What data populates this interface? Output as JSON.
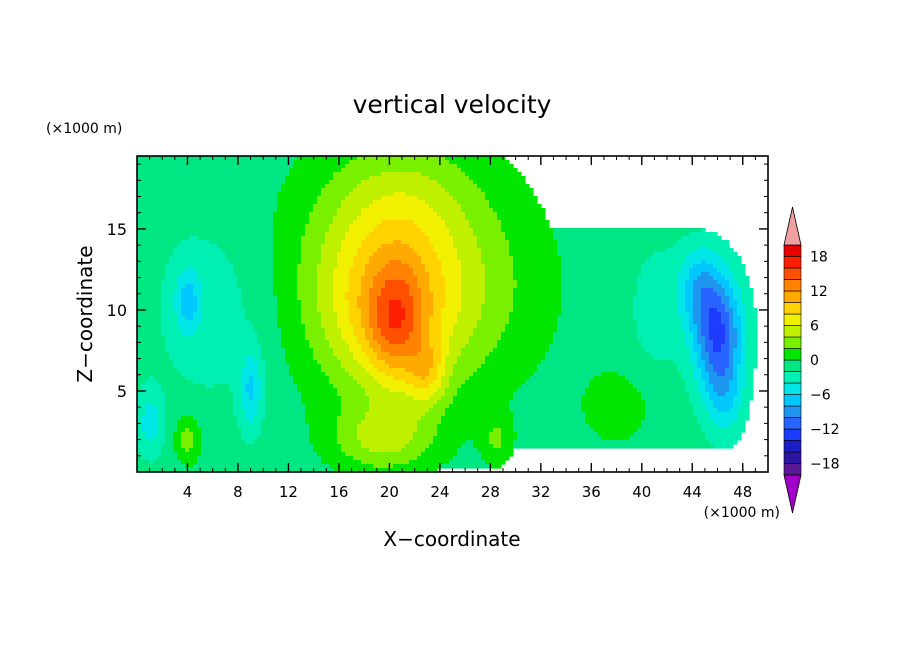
{
  "chart_data": {
    "type": "heatmap",
    "title": "vertical velocity",
    "xlabel": "X−coordinate",
    "ylabel": "Z−coordinate",
    "x_unit": "(×1000 m)",
    "y_unit": "(×1000 m)",
    "xlim": [
      0,
      50
    ],
    "ylim": [
      0,
      19.5
    ],
    "x_ticks": [
      4,
      8,
      12,
      16,
      20,
      24,
      28,
      32,
      36,
      40,
      44,
      48
    ],
    "y_ticks": [
      5,
      10,
      15
    ],
    "x_tick_labels": [
      "4",
      "8",
      "12",
      "16",
      "20",
      "24",
      "28",
      "32",
      "36",
      "40",
      "44",
      "48"
    ],
    "y_tick_labels": [
      "5",
      "10",
      "15"
    ],
    "colorbar": {
      "levels": [
        -20,
        -18,
        -16,
        -14,
        -12,
        -10,
        -8,
        -6,
        -4,
        -2,
        0,
        2,
        4,
        6,
        8,
        10,
        12,
        14,
        16,
        18,
        20
      ],
      "labeled": [
        18,
        12,
        6,
        0,
        -6,
        -12,
        -18
      ],
      "labels": [
        "18",
        "12",
        "6",
        "0",
        "−6",
        "−12",
        "−18"
      ],
      "colors": [
        "#5a1a96",
        "#2d14a4",
        "#1e1ec8",
        "#1e3cff",
        "#2864ff",
        "#1e96f0",
        "#00c8ff",
        "#00e6e6",
        "#00f0b4",
        "#00e682",
        "#00e600",
        "#78f000",
        "#bef000",
        "#f0f000",
        "#ffd200",
        "#ffaa00",
        "#ff8200",
        "#ff5000",
        "#ff1e00",
        "#e60000"
      ],
      "over_color": "#f0a0a0",
      "under_color": "#a000c8"
    },
    "features": [
      {
        "x": 20.0,
        "z": 10.0,
        "sx": 5.5,
        "sz": 5.5,
        "amp": 8
      },
      {
        "x": 20.5,
        "z": 9.0,
        "sx": 2.2,
        "sz": 3.5,
        "amp": 6
      },
      {
        "x": 23.0,
        "z": 6.0,
        "sx": 1.5,
        "sz": 2.0,
        "amp": 5
      },
      {
        "x": 20.0,
        "z": 12.5,
        "sx": 8.5,
        "sz": 6.5,
        "amp": 4
      },
      {
        "x": 27.5,
        "z": 11.0,
        "sx": 6.0,
        "sz": 6.0,
        "amp": 2
      },
      {
        "x": 21.0,
        "z": 17.0,
        "sx": 6.0,
        "sz": 4.0,
        "amp": 3
      },
      {
        "x": 19.5,
        "z": 2.0,
        "sx": 4.0,
        "sz": 2.0,
        "amp": 5
      },
      {
        "x": 28.5,
        "z": 2.0,
        "sx": 1.2,
        "sz": 1.5,
        "amp": 3
      },
      {
        "x": 46.0,
        "z": 8.5,
        "sx": 2.0,
        "sz": 3.5,
        "amp": -11
      },
      {
        "x": 44.5,
        "z": 11.5,
        "sx": 1.8,
        "sz": 2.5,
        "amp": -5
      },
      {
        "x": 46.5,
        "z": 4.5,
        "sx": 1.5,
        "sz": 2.5,
        "amp": -4
      },
      {
        "x": 4.0,
        "z": 10.5,
        "sx": 1.0,
        "sz": 2.0,
        "amp": -5
      },
      {
        "x": 9.0,
        "z": 5.0,
        "sx": 0.9,
        "sz": 2.5,
        "amp": -5
      },
      {
        "x": 6.0,
        "z": 10.0,
        "sx": 5.0,
        "sz": 6.0,
        "amp": -2
      },
      {
        "x": 1.0,
        "z": 3.0,
        "sx": 1.0,
        "sz": 2.0,
        "amp": -4
      },
      {
        "x": 4.0,
        "z": 2.0,
        "sx": 1.0,
        "sz": 1.5,
        "amp": 4
      },
      {
        "x": 38.0,
        "z": 4.0,
        "sx": 3.0,
        "sz": 2.5,
        "amp": 2
      },
      {
        "x": 41.0,
        "z": 10.0,
        "sx": 2.0,
        "sz": 4.0,
        "amp": -2
      }
    ]
  }
}
